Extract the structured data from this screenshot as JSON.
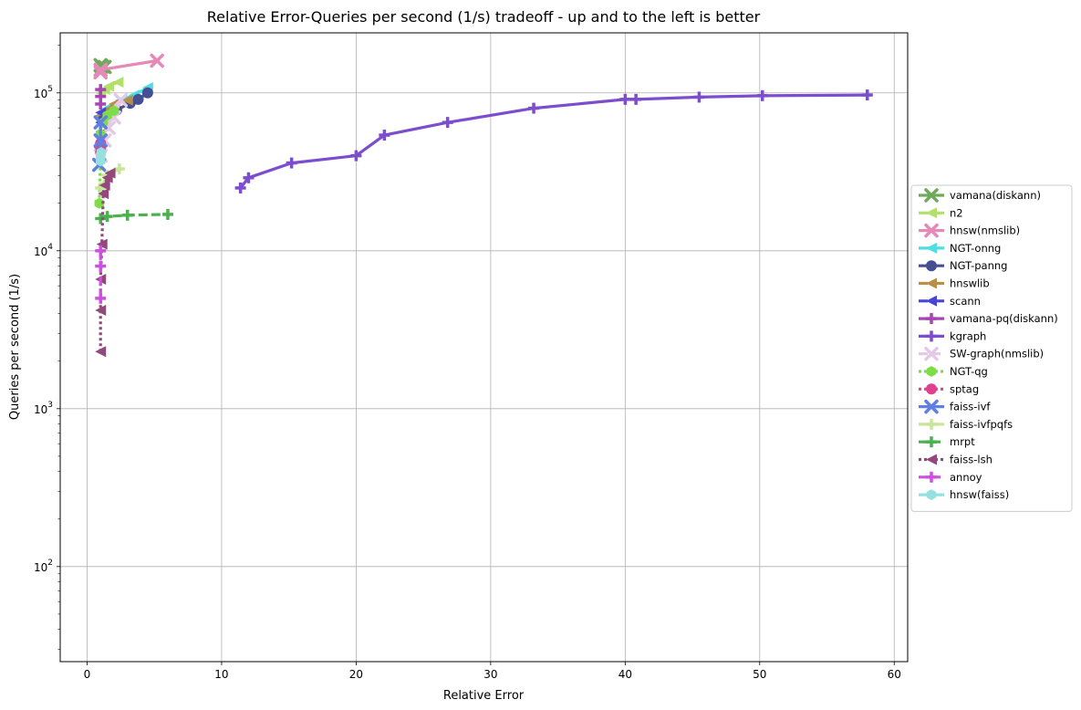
{
  "chart_data": {
    "type": "line",
    "title": "Relative Error-Queries per second (1/s) tradeoff - up and to the left is better",
    "xlabel": "Relative Error",
    "ylabel": "Queries per second (1/s)",
    "xscale": "linear",
    "yscale": "log",
    "xlim": [
      -2,
      61
    ],
    "ylim": [
      25,
      240000
    ],
    "xticks": [
      0,
      10,
      20,
      30,
      40,
      50,
      60
    ],
    "xtick_labels": [
      "0",
      "10",
      "20",
      "30",
      "40",
      "50",
      "60"
    ],
    "yticks": [
      100,
      1000,
      10000,
      100000
    ],
    "ytick_labels": [
      {
        "base": "10",
        "exp": "2"
      },
      {
        "base": "10",
        "exp": "3"
      },
      {
        "base": "10",
        "exp": "4"
      },
      {
        "base": "10",
        "exp": "5"
      }
    ],
    "grid": true,
    "legend_position": "outside right",
    "series": [
      {
        "name": "vamana(diskann)",
        "color": "#6faa5c",
        "marker": "x",
        "dash": "solid",
        "points": [
          [
            1.0,
            150000
          ],
          [
            1.05,
            148000
          ],
          [
            1.1,
            147000
          ],
          [
            1.3,
            146000
          ]
        ]
      },
      {
        "name": "n2",
        "color": "#b3e06a",
        "marker": "triangle-left",
        "dash": "solid",
        "points": [
          [
            1.0,
            100000
          ],
          [
            1.3,
            105000
          ],
          [
            1.6,
            110000
          ],
          [
            2.3,
            117000
          ]
        ]
      },
      {
        "name": "hnsw(nmslib)",
        "color": "#e589b7",
        "marker": "x",
        "dash": "solid",
        "points": [
          [
            1.0,
            135000
          ],
          [
            1.0,
            140000
          ],
          [
            5.2,
            160000
          ]
        ]
      },
      {
        "name": "NGT-onng",
        "color": "#4ddde3",
        "marker": "triangle-left",
        "dash": "solid",
        "points": [
          [
            1.5,
            80000
          ],
          [
            2.5,
            90000
          ],
          [
            3.5,
            97000
          ],
          [
            4.5,
            108000
          ]
        ]
      },
      {
        "name": "NGT-panng",
        "color": "#464f91",
        "marker": "circle",
        "dash": "solid",
        "points": [
          [
            1.2,
            70000
          ],
          [
            2.2,
            78000
          ],
          [
            3.2,
            86000
          ],
          [
            3.8,
            91000
          ],
          [
            4.5,
            100000
          ]
        ]
      },
      {
        "name": "hnswlib",
        "color": "#b59046",
        "marker": "triangle-left",
        "dash": "dashdot",
        "points": [
          [
            1.0,
            72000
          ],
          [
            1.5,
            78000
          ],
          [
            2.0,
            85000
          ],
          [
            3.0,
            90000
          ]
        ]
      },
      {
        "name": "scann",
        "color": "#4744d6",
        "marker": "triangle-left",
        "dash": "dashdot",
        "points": [
          [
            0.9,
            45000
          ],
          [
            1.0,
            55000
          ],
          [
            1.0,
            65000
          ],
          [
            1.0,
            75000
          ]
        ]
      },
      {
        "name": "vamana-pq(diskann)",
        "color": "#a845b5",
        "marker": "plus",
        "dash": "solid",
        "points": [
          [
            1.0,
            85000
          ],
          [
            1.0,
            95000
          ],
          [
            1.0,
            105000
          ]
        ]
      },
      {
        "name": "kgraph",
        "color": "#7c4dcc",
        "marker": "plus",
        "dash": "solid",
        "points": [
          [
            11.4,
            25000
          ],
          [
            12.0,
            29000
          ],
          [
            15.2,
            36000
          ],
          [
            20.0,
            40000
          ],
          [
            22.1,
            54000
          ],
          [
            26.8,
            65000
          ],
          [
            33.2,
            80000
          ],
          [
            40.0,
            91000
          ],
          [
            40.8,
            91000
          ],
          [
            45.5,
            94000
          ],
          [
            50.2,
            96000
          ],
          [
            58.0,
            97000
          ]
        ]
      },
      {
        "name": "SW-graph(nmslib)",
        "color": "#e3c8e8",
        "marker": "x",
        "dash": "dashed",
        "points": [
          [
            1.0,
            40000
          ],
          [
            1.3,
            50000
          ],
          [
            1.6,
            60000
          ],
          [
            2.0,
            70000
          ],
          [
            2.5,
            90000
          ]
        ]
      },
      {
        "name": "NGT-qg",
        "color": "#7ddd47",
        "marker": "hexagon",
        "dash": "dotted",
        "points": [
          [
            0.9,
            20000
          ],
          [
            1.0,
            40000
          ],
          [
            1.0,
            55000
          ],
          [
            1.2,
            65000
          ],
          [
            1.5,
            72000
          ],
          [
            2.0,
            77000
          ]
        ]
      },
      {
        "name": "sptag",
        "color": "#e0418e",
        "marker": "circle",
        "dash": "dotted",
        "points": [
          [
            1.0,
            42000
          ],
          [
            1.0,
            45000
          ],
          [
            1.0,
            48000
          ]
        ]
      },
      {
        "name": "faiss-ivf",
        "color": "#5f80e0",
        "marker": "x",
        "dash": "solid",
        "points": [
          [
            0.9,
            35000
          ],
          [
            1.0,
            50000
          ],
          [
            1.0,
            65000
          ]
        ]
      },
      {
        "name": "faiss-ivfpqfs",
        "color": "#c9e59a",
        "marker": "plus",
        "dash": "solid",
        "points": [
          [
            1.0,
            25000
          ],
          [
            1.5,
            30000
          ],
          [
            2.4,
            33000
          ]
        ]
      },
      {
        "name": "mrpt",
        "color": "#4caf50",
        "marker": "plus",
        "dash": "dashed",
        "points": [
          [
            1.0,
            16000
          ],
          [
            1.5,
            16500
          ],
          [
            3.0,
            16800
          ],
          [
            6.0,
            17000
          ]
        ]
      },
      {
        "name": "faiss-lsh",
        "color": "#92487c",
        "marker": "triangle-left",
        "dash": "dotted",
        "points": [
          [
            1.0,
            2300
          ],
          [
            1.0,
            4200
          ],
          [
            1.0,
            6600
          ],
          [
            1.1,
            11000
          ],
          [
            1.2,
            23000
          ],
          [
            1.3,
            26000
          ],
          [
            1.5,
            29000
          ],
          [
            1.7,
            31000
          ]
        ]
      },
      {
        "name": "annoy",
        "color": "#cf4fe0",
        "marker": "plus",
        "dash": "dashed",
        "points": [
          [
            1.0,
            5000
          ],
          [
            1.0,
            8000
          ],
          [
            1.0,
            10000
          ]
        ]
      },
      {
        "name": "hnsw(faiss)",
        "color": "#96e0e0",
        "marker": "hexagon",
        "dash": "solid",
        "points": [
          [
            1.0,
            37000
          ],
          [
            1.0,
            40000
          ],
          [
            1.05,
            42000
          ]
        ]
      }
    ]
  }
}
